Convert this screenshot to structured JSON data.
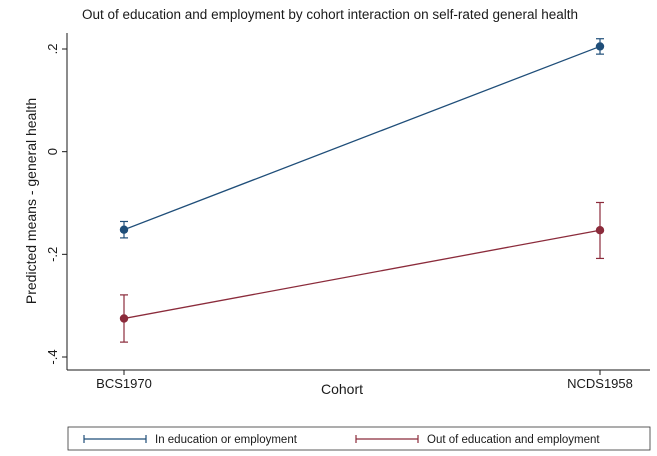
{
  "chart_data": {
    "type": "line",
    "title": "Out of education and employment by cohort interaction on self-rated general health",
    "xlabel": "Cohort",
    "ylabel": "Predicted means - general health",
    "categories": [
      "BCS1970",
      "NCDS1958"
    ],
    "ylim": [
      -0.4,
      0.2
    ],
    "yticks": [
      0.2,
      0,
      -0.2,
      -0.4
    ],
    "ytick_labels": [
      ".2",
      "0",
      "-.2",
      "-.4"
    ],
    "grid": false,
    "legend_position": "bottom",
    "series": [
      {
        "name": "In education or employment",
        "color": "#1f4e79",
        "values": [
          -0.152,
          0.205
        ],
        "ci_low": [
          -0.168,
          0.19
        ],
        "ci_high": [
          -0.136,
          0.22
        ]
      },
      {
        "name": "Out of education and employment",
        "color": "#8b2b3b",
        "values": [
          -0.325,
          -0.153
        ],
        "ci_low": [
          -0.371,
          -0.208
        ],
        "ci_high": [
          -0.279,
          -0.099
        ]
      }
    ]
  }
}
